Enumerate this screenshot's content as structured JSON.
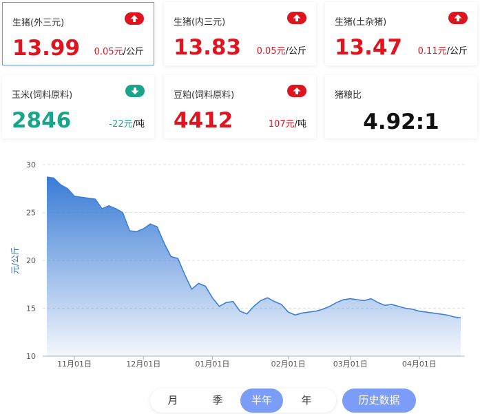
{
  "cards": [
    {
      "title": "生猪(外三元)",
      "price": "13.99",
      "change": "0.05元",
      "unit": "/公斤",
      "color": "#e0141e"
    },
    {
      "title": "生猪(内三元)",
      "price": "13.83",
      "change": "0.05元",
      "unit": "/公斤",
      "color": "#e0141e"
    },
    {
      "title": "生猪(土杂猪)",
      "price": "13.47",
      "change": "0.11元",
      "unit": "/公斤",
      "color": "#e0141e"
    },
    {
      "title": "玉米(饲料原料)",
      "price": "2846",
      "change": "-22元",
      "unit": "/吨",
      "color": "#1aa58a"
    },
    {
      "title": "豆粕(饲料原料)",
      "price": "4412",
      "change": "107元",
      "unit": "/吨",
      "color": "#e0141e"
    },
    {
      "title": "猪粮比",
      "price": "4.92:1",
      "color": "#111111"
    }
  ],
  "chart_data": {
    "type": "area",
    "ylabel": "元/公斤",
    "color": "#3d7fd6",
    "grid": true,
    "ylim": [
      10,
      30
    ],
    "yticks": [
      10,
      15,
      20,
      25,
      30
    ],
    "categories": [
      null,
      null,
      null,
      null,
      "11月01日",
      null,
      null,
      null,
      null,
      null,
      null,
      null,
      null,
      null,
      "12月01日",
      null,
      null,
      null,
      null,
      null,
      null,
      null,
      null,
      null,
      "01月01日",
      null,
      null,
      null,
      null,
      null,
      null,
      null,
      null,
      null,
      null,
      "02月01日",
      null,
      null,
      null,
      null,
      null,
      null,
      null,
      null,
      "03月01日",
      null,
      null,
      null,
      null,
      null,
      null,
      null,
      null,
      null,
      "04月01日",
      null,
      null,
      null,
      null,
      null,
      null
    ],
    "values": [
      28.7,
      28.6,
      27.9,
      27.5,
      26.7,
      26.6,
      26.5,
      26.4,
      25.4,
      25.7,
      25.4,
      25.0,
      23.1,
      23.0,
      23.3,
      23.8,
      23.5,
      21.8,
      20.4,
      20.2,
      18.5,
      17.0,
      17.6,
      17.3,
      16.1,
      15.2,
      15.6,
      15.7,
      14.7,
      14.4,
      15.2,
      15.8,
      16.1,
      15.7,
      15.4,
      14.6,
      14.3,
      14.5,
      14.6,
      14.7,
      14.9,
      15.2,
      15.6,
      15.9,
      16.0,
      15.9,
      15.8,
      16.0,
      15.6,
      15.3,
      15.4,
      15.2,
      15.0,
      14.9,
      14.7,
      14.6,
      14.5,
      14.4,
      14.3,
      14.1,
      14.0
    ]
  },
  "buttons": {
    "periods": [
      "月",
      "季",
      "半年",
      "年"
    ],
    "history": "历史数据"
  }
}
